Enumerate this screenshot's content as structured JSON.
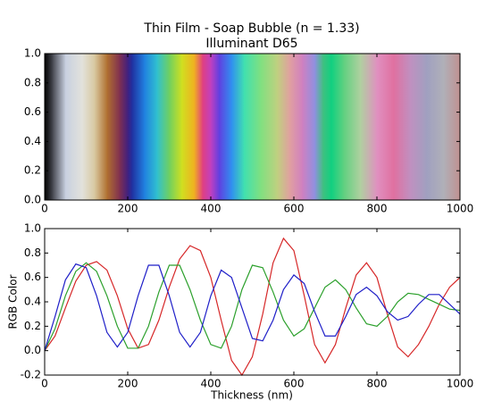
{
  "chart_data": [
    {
      "type": "colorstrip",
      "title": "Thin Film - Soap Bubble (n = 1.33)",
      "subtitle": "Illuminant D65",
      "x": [
        0,
        20,
        50,
        90,
        120,
        150,
        180,
        200,
        210,
        240,
        270,
        300,
        330,
        360,
        380,
        400,
        420,
        450,
        480,
        520,
        560,
        590,
        620,
        650,
        670,
        690,
        720,
        760,
        800,
        840,
        880,
        920,
        960,
        1000
      ],
      "colors": [
        "#000000",
        "#4a4c55",
        "#c8d0e0",
        "#e2e2dc",
        "#d8c8a0",
        "#b07030",
        "#803050",
        "#402080",
        "#2030a0",
        "#2080e0",
        "#30c0d0",
        "#70d060",
        "#d0e020",
        "#f0b020",
        "#e04080",
        "#c040c0",
        "#6040e0",
        "#3090f0",
        "#40e0b0",
        "#80e080",
        "#c0d080",
        "#e0a0a0",
        "#d080c0",
        "#9090e0",
        "#40c080",
        "#10d080",
        "#60d080",
        "#b0d0a0",
        "#e090c0",
        "#e070a0",
        "#c090c0",
        "#a0a0c0",
        "#b0b0b8",
        "#c09090"
      ],
      "xlim": [
        0,
        1000
      ],
      "ylim": [
        0,
        1
      ],
      "xticks": [
        0,
        200,
        400,
        600,
        800,
        1000
      ],
      "yticks": [
        {
          "value": 0,
          "label": "0.0"
        },
        0.2,
        0.4,
        0.6,
        0.8,
        {
          "value": 1,
          "label": "1.0"
        }
      ]
    },
    {
      "type": "line",
      "xlabel": "Thickness (nm)",
      "ylabel": "RGB Color",
      "x": [
        0,
        25,
        50,
        75,
        100,
        125,
        150,
        175,
        200,
        225,
        250,
        275,
        300,
        325,
        350,
        375,
        400,
        425,
        450,
        475,
        500,
        525,
        550,
        575,
        600,
        625,
        650,
        675,
        700,
        725,
        750,
        775,
        800,
        825,
        850,
        875,
        900,
        925,
        950,
        975,
        1000
      ],
      "series": [
        {
          "color": "#d62728",
          "values": [
            0,
            0.12,
            0.35,
            0.57,
            0.7,
            0.73,
            0.66,
            0.45,
            0.18,
            0.02,
            0.05,
            0.25,
            0.52,
            0.75,
            0.86,
            0.82,
            0.6,
            0.25,
            -0.08,
            -0.2,
            -0.05,
            0.3,
            0.72,
            0.92,
            0.82,
            0.45,
            0.05,
            -0.1,
            0.05,
            0.35,
            0.62,
            0.72,
            0.6,
            0.3,
            0.03,
            -0.05,
            0.05,
            0.2,
            0.38,
            0.52,
            0.6
          ]
        },
        {
          "color": "#2ca02c",
          "values": [
            0,
            0.18,
            0.45,
            0.65,
            0.72,
            0.65,
            0.45,
            0.2,
            0.02,
            0.02,
            0.2,
            0.48,
            0.7,
            0.7,
            0.5,
            0.25,
            0.05,
            0.02,
            0.2,
            0.5,
            0.7,
            0.68,
            0.48,
            0.25,
            0.12,
            0.18,
            0.35,
            0.52,
            0.58,
            0.5,
            0.35,
            0.22,
            0.2,
            0.28,
            0.4,
            0.47,
            0.46,
            0.42,
            0.38,
            0.34,
            0.33
          ]
        },
        {
          "color": "#1f1fc8",
          "values": [
            0,
            0.28,
            0.58,
            0.71,
            0.68,
            0.45,
            0.15,
            0.03,
            0.15,
            0.45,
            0.7,
            0.7,
            0.45,
            0.15,
            0.03,
            0.15,
            0.45,
            0.66,
            0.6,
            0.35,
            0.1,
            0.08,
            0.25,
            0.5,
            0.62,
            0.55,
            0.32,
            0.12,
            0.12,
            0.28,
            0.46,
            0.52,
            0.45,
            0.32,
            0.25,
            0.28,
            0.38,
            0.46,
            0.46,
            0.38,
            0.3
          ]
        }
      ],
      "xlim": [
        0,
        1000
      ],
      "ylim": [
        -0.2,
        1
      ],
      "xticks": [
        0,
        200,
        400,
        600,
        800,
        1000
      ],
      "yticks": [
        -0.2,
        {
          "value": 0,
          "label": "0.0"
        },
        0.2,
        0.4,
        0.6,
        0.8,
        {
          "value": 1,
          "label": "1.0"
        }
      ]
    }
  ]
}
